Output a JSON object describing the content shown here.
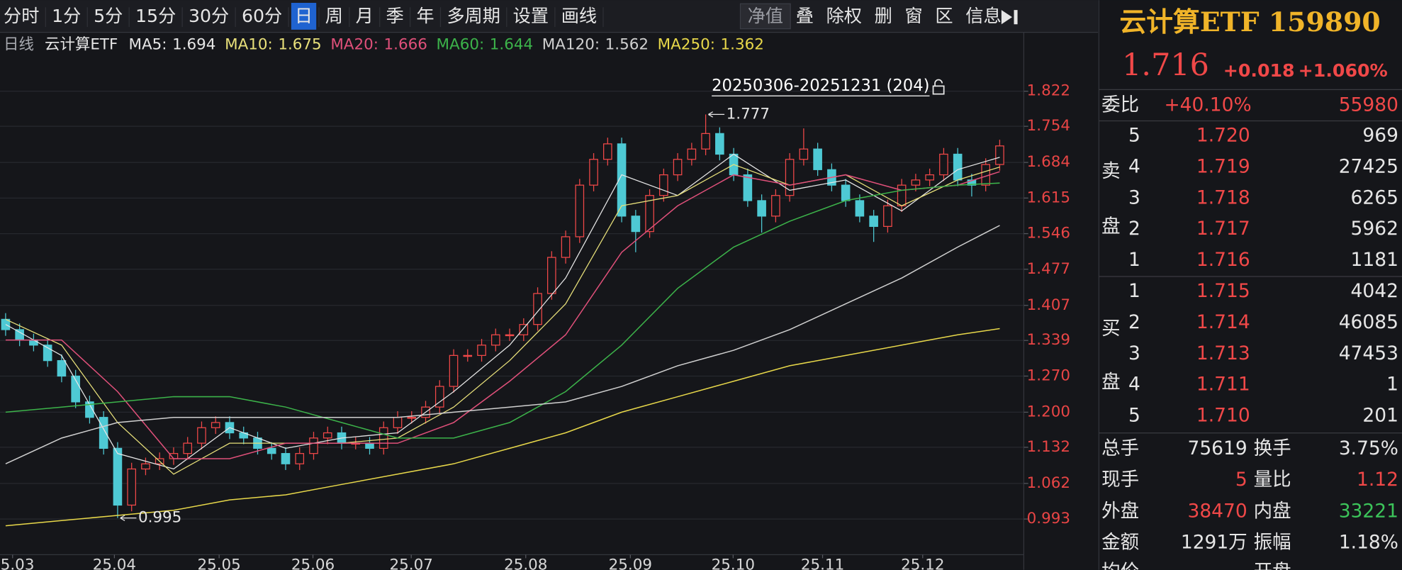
{
  "toolbar": {
    "left": [
      "分时",
      "1分",
      "5分",
      "15分",
      "30分",
      "60分",
      "日",
      "周",
      "月",
      "季",
      "年",
      "多周期",
      "设置",
      "画线"
    ],
    "active": 6,
    "right": [
      "净值",
      "叠",
      "除权",
      "删",
      "窗",
      "区",
      "信息"
    ]
  },
  "legend_head": [
    "日线",
    "云计算ETF"
  ],
  "quote": {
    "title": "云计算ETF 159890",
    "price": "1.716",
    "change": "+0.018",
    "change_pct": "+1.060%"
  },
  "order_book": {
    "ratio_label": "委比",
    "ratio": "+40.10%",
    "diff": "55980",
    "sell_label": [
      "卖",
      "盘"
    ],
    "sell": [
      [
        "5",
        "1.720",
        "969"
      ],
      [
        "4",
        "1.719",
        "27425"
      ],
      [
        "3",
        "1.718",
        "6265"
      ],
      [
        "2",
        "1.717",
        "5962"
      ],
      [
        "1",
        "1.716",
        "1181"
      ]
    ],
    "buy_label": [
      "买",
      "盘"
    ],
    "buy": [
      [
        "1",
        "1.715",
        "4042"
      ],
      [
        "2",
        "1.714",
        "46085"
      ],
      [
        "3",
        "1.713",
        "47453"
      ],
      [
        "4",
        "1.711",
        "1"
      ],
      [
        "5",
        "1.710",
        "201"
      ]
    ],
    "stats": [
      {
        "cells": [
          "总手",
          "75619",
          "换手",
          "3.75%"
        ],
        "colors": [
          "#e6e6e6",
          "#e6e6e6"
        ]
      },
      {
        "cells": [
          "现手",
          "5",
          "量比",
          "1.12"
        ],
        "colors": [
          "#f04848",
          "#f04848"
        ]
      },
      {
        "cells": [
          "外盘",
          "38470",
          "内盘",
          "33221"
        ],
        "colors": [
          "#f04848",
          "#3cc45a"
        ]
      },
      {
        "cells": [
          "金额",
          "1291万",
          "振幅",
          "1.18%"
        ],
        "colors": [
          "#e6e6e6",
          "#e6e6e6"
        ]
      }
    ],
    "cut_row": [
      "均价",
      "开盘"
    ]
  },
  "chart_data": {
    "type": "candlestick",
    "range_label": "20250306-20251231 (204)",
    "grid": true,
    "up_color": "#f04848",
    "down_color": "#4ec9d4",
    "ylim": [
      0.924,
      1.943
    ],
    "yticks": [
      1.822,
      1.754,
      1.684,
      1.615,
      1.546,
      1.477,
      1.407,
      1.339,
      {
        "value": 1.27,
        "label": "1.270"
      },
      {
        "value": 1.2,
        "label": "1.200"
      },
      1.132,
      1.062,
      0.993
    ],
    "xlim": [
      -0.4,
      72.4
    ],
    "xticks": [
      {
        "value": 0.5,
        "label": "25.03"
      },
      {
        "value": 7.77,
        "label": "25.04"
      },
      {
        "value": 15.25,
        "label": "25.05"
      },
      {
        "value": 21.95,
        "label": "25.06"
      },
      {
        "value": 28.97,
        "label": "25.07"
      },
      {
        "value": 37.15,
        "label": "25.08"
      },
      {
        "value": 44.62,
        "label": "25.09"
      },
      {
        "value": 51.96,
        "label": "25.10"
      },
      {
        "value": 58.35,
        "label": "25.11"
      },
      {
        "value": 65.5,
        "label": "25.12"
      }
    ],
    "open": [
      1.38,
      1.36,
      1.34,
      1.33,
      1.3,
      1.27,
      1.22,
      1.19,
      1.13,
      1.02,
      1.09,
      1.1,
      1.11,
      1.12,
      1.14,
      1.17,
      1.18,
      1.16,
      1.15,
      1.13,
      1.12,
      1.1,
      1.12,
      1.15,
      1.16,
      1.14,
      1.14,
      1.13,
      1.17,
      1.19,
      1.19,
      1.21,
      1.25,
      1.31,
      1.31,
      1.33,
      1.35,
      1.35,
      1.37,
      1.43,
      1.5,
      1.54,
      1.64,
      1.69,
      1.72,
      1.58,
      1.55,
      1.62,
      1.66,
      1.69,
      1.71,
      1.74,
      1.7,
      1.66,
      1.61,
      1.58,
      1.62,
      1.69,
      1.71,
      1.67,
      1.64,
      1.61,
      1.58,
      1.56,
      1.6,
      1.64,
      1.65,
      1.66,
      1.7,
      1.65,
      1.64,
      1.68
    ],
    "high": [
      1.392,
      1.372,
      1.352,
      1.342,
      1.312,
      1.282,
      1.232,
      1.202,
      1.142,
      1.102,
      1.112,
      1.122,
      1.132,
      1.152,
      1.182,
      1.192,
      1.192,
      1.172,
      1.162,
      1.142,
      1.132,
      1.132,
      1.162,
      1.172,
      1.172,
      1.152,
      1.152,
      1.182,
      1.202,
      1.202,
      1.222,
      1.262,
      1.322,
      1.322,
      1.342,
      1.362,
      1.362,
      1.382,
      1.442,
      1.512,
      1.552,
      1.652,
      1.702,
      1.732,
      1.732,
      1.592,
      1.632,
      1.672,
      1.702,
      1.722,
      1.777,
      1.752,
      1.712,
      1.672,
      1.622,
      1.632,
      1.702,
      1.75,
      1.722,
      1.682,
      1.652,
      1.622,
      1.592,
      1.612,
      1.652,
      1.662,
      1.672,
      1.712,
      1.712,
      1.662,
      1.692,
      1.728
    ],
    "low": [
      1.348,
      1.328,
      1.318,
      1.288,
      1.258,
      1.208,
      1.178,
      1.118,
      0.995,
      1.008,
      1.078,
      1.088,
      1.098,
      1.108,
      1.128,
      1.158,
      1.148,
      1.138,
      1.118,
      1.108,
      1.088,
      1.088,
      1.108,
      1.138,
      1.128,
      1.128,
      1.118,
      1.118,
      1.158,
      1.178,
      1.178,
      1.198,
      1.238,
      1.298,
      1.298,
      1.318,
      1.338,
      1.338,
      1.358,
      1.418,
      1.488,
      1.528,
      1.628,
      1.678,
      1.568,
      1.51,
      1.538,
      1.608,
      1.648,
      1.678,
      1.698,
      1.688,
      1.648,
      1.598,
      1.548,
      1.568,
      1.608,
      1.678,
      1.658,
      1.628,
      1.598,
      1.568,
      1.53,
      1.548,
      1.588,
      1.628,
      1.638,
      1.648,
      1.638,
      1.618,
      1.628,
      1.668
    ],
    "close": [
      1.36,
      1.34,
      1.33,
      1.3,
      1.27,
      1.22,
      1.19,
      1.13,
      1.02,
      1.09,
      1.1,
      1.11,
      1.12,
      1.14,
      1.17,
      1.18,
      1.16,
      1.15,
      1.13,
      1.12,
      1.1,
      1.12,
      1.15,
      1.16,
      1.14,
      1.14,
      1.13,
      1.17,
      1.19,
      1.19,
      1.21,
      1.25,
      1.31,
      1.31,
      1.33,
      1.35,
      1.35,
      1.37,
      1.43,
      1.5,
      1.54,
      1.64,
      1.69,
      1.72,
      1.58,
      1.55,
      1.62,
      1.66,
      1.69,
      1.71,
      1.74,
      1.7,
      1.66,
      1.61,
      1.58,
      1.62,
      1.69,
      1.71,
      1.67,
      1.64,
      1.61,
      1.58,
      1.56,
      1.6,
      1.64,
      1.65,
      1.66,
      1.7,
      1.65,
      1.64,
      1.68,
      1.716
    ],
    "series": [
      {
        "name": "MA5:",
        "color": "#e6e6e6",
        "width": 1,
        "x": [
          0,
          4,
          8,
          12,
          16,
          20,
          24,
          28,
          32,
          36,
          40,
          44,
          48,
          52,
          56,
          60,
          64,
          68,
          71
        ],
        "values": [
          1.37,
          1.31,
          1.12,
          1.09,
          1.17,
          1.13,
          1.15,
          1.16,
          1.24,
          1.33,
          1.46,
          1.66,
          1.62,
          1.7,
          1.63,
          1.65,
          1.59,
          1.67,
          1.694
        ]
      },
      {
        "name": "MA10:",
        "color": "#e8e07a",
        "width": 1,
        "x": [
          0,
          4,
          8,
          12,
          16,
          20,
          24,
          28,
          32,
          36,
          40,
          44,
          48,
          52,
          56,
          60,
          64,
          68,
          71
        ],
        "values": [
          1.38,
          1.33,
          1.18,
          1.08,
          1.14,
          1.14,
          1.14,
          1.15,
          1.21,
          1.3,
          1.41,
          1.6,
          1.62,
          1.68,
          1.64,
          1.66,
          1.6,
          1.65,
          1.675
        ]
      },
      {
        "name": "MA20:",
        "color": "#e0507a",
        "width": 1.2,
        "x": [
          0,
          4,
          8,
          12,
          16,
          20,
          24,
          28,
          32,
          36,
          40,
          44,
          48,
          52,
          56,
          60,
          64,
          68,
          71
        ],
        "values": [
          1.34,
          1.34,
          1.24,
          1.11,
          1.11,
          1.14,
          1.14,
          1.14,
          1.18,
          1.26,
          1.35,
          1.51,
          1.6,
          1.66,
          1.64,
          1.66,
          1.63,
          1.64,
          1.666
        ]
      },
      {
        "name": "MA60:",
        "color": "#3cb34a",
        "width": 1.2,
        "x": [
          0,
          4,
          8,
          12,
          16,
          20,
          24,
          28,
          32,
          36,
          40,
          44,
          48,
          52,
          56,
          60,
          64,
          68,
          71
        ],
        "values": [
          1.2,
          1.21,
          1.22,
          1.23,
          1.23,
          1.21,
          1.18,
          1.15,
          1.15,
          1.18,
          1.24,
          1.33,
          1.44,
          1.52,
          1.57,
          1.61,
          1.63,
          1.64,
          1.644
        ]
      },
      {
        "name": "MA120:",
        "color": "#d0d0d0",
        "width": 1.2,
        "x": [
          0,
          4,
          8,
          12,
          16,
          20,
          24,
          28,
          32,
          36,
          40,
          44,
          48,
          52,
          56,
          60,
          64,
          68,
          71
        ],
        "values": [
          1.1,
          1.15,
          1.18,
          1.19,
          1.19,
          1.19,
          1.19,
          1.19,
          1.2,
          1.21,
          1.22,
          1.25,
          1.29,
          1.32,
          1.36,
          1.41,
          1.46,
          1.52,
          1.562
        ]
      },
      {
        "name": "MA250:",
        "color": "#e8d84a",
        "width": 1.2,
        "x": [
          0,
          4,
          8,
          12,
          16,
          20,
          24,
          28,
          32,
          36,
          40,
          44,
          48,
          52,
          56,
          60,
          64,
          68,
          71
        ],
        "values": [
          0.98,
          0.99,
          1.0,
          1.01,
          1.03,
          1.04,
          1.06,
          1.08,
          1.1,
          1.13,
          1.16,
          1.2,
          1.23,
          1.26,
          1.29,
          1.31,
          1.33,
          1.35,
          1.362
        ]
      }
    ]
  }
}
